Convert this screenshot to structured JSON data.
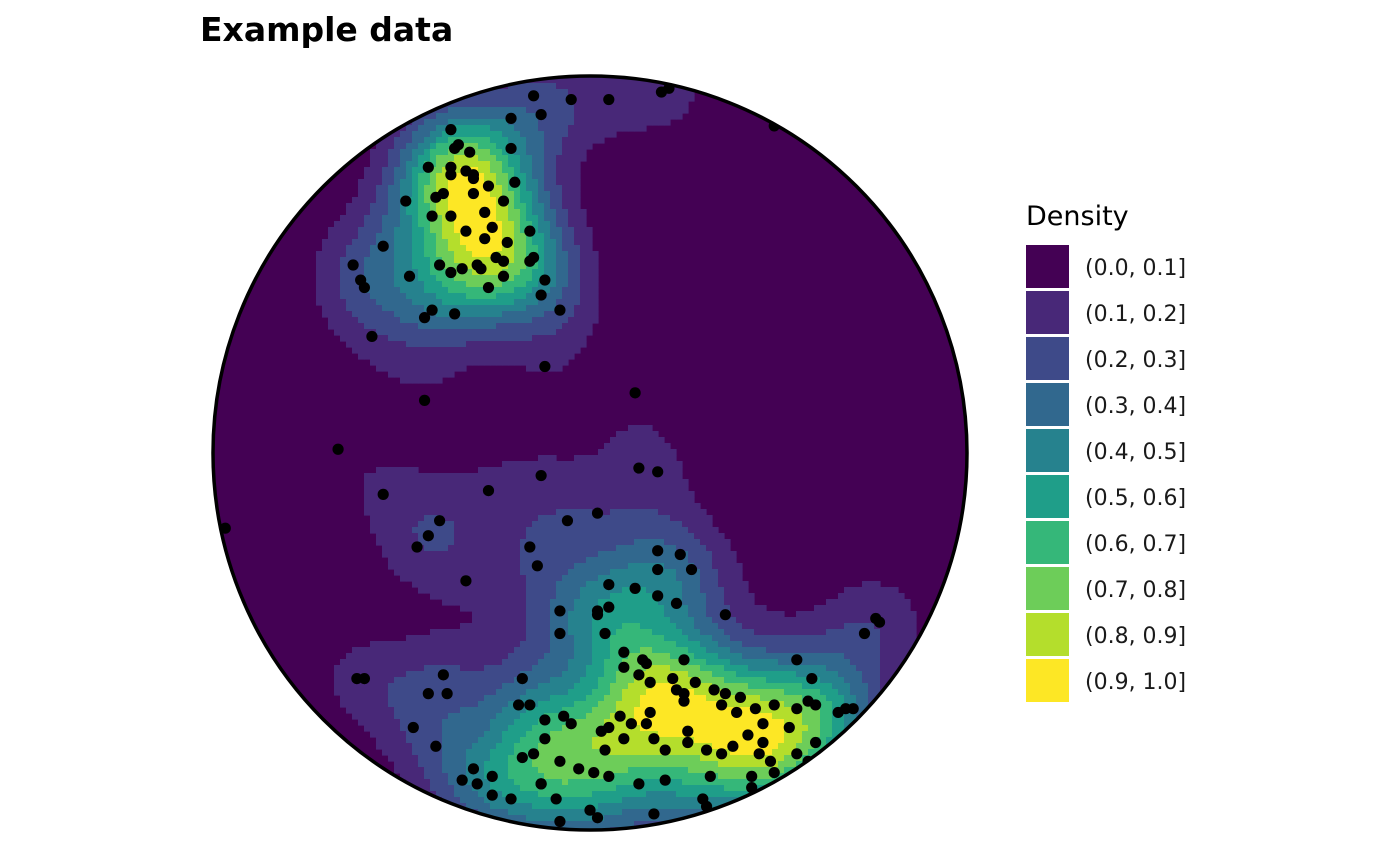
{
  "chart_data": {
    "type": "heatmap",
    "subtype": "stereonet density contour (equal-area)",
    "title": "Example data",
    "legend": {
      "title": "Density",
      "placement": "right",
      "bins": [
        {
          "label": "(0.0, 0.1]",
          "color": "#440154"
        },
        {
          "label": "(0.1, 0.2]",
          "color": "#482878"
        },
        {
          "label": "(0.2, 0.3]",
          "color": "#3E4A89"
        },
        {
          "label": "(0.3, 0.4]",
          "color": "#31688E"
        },
        {
          "label": "(0.4, 0.5]",
          "color": "#26828E"
        },
        {
          "label": "(0.5, 0.6]",
          "color": "#1F9E89"
        },
        {
          "label": "(0.6, 0.7]",
          "color": "#35B779"
        },
        {
          "label": "(0.7, 0.8]",
          "color": "#6DCD59"
        },
        {
          "label": "(0.8, 0.9]",
          "color": "#B4DE2C"
        },
        {
          "label": "(0.9, 1.0]",
          "color": "#FDE725"
        }
      ]
    },
    "grid": false,
    "point_color": "#000000",
    "points": [
      [
        -0.15,
        0.95
      ],
      [
        -0.21,
        0.89
      ],
      [
        -0.37,
        0.86
      ],
      [
        -0.35,
        0.82
      ],
      [
        -0.36,
        0.81
      ],
      [
        -0.32,
        0.8
      ],
      [
        -0.21,
        0.81
      ],
      [
        -0.31,
        0.74
      ],
      [
        -0.37,
        0.74
      ],
      [
        -0.31,
        0.73
      ],
      [
        -0.31,
        0.69
      ],
      [
        -0.2,
        0.72
      ],
      [
        -0.23,
        0.67
      ],
      [
        -0.41,
        0.68
      ],
      [
        -0.39,
        0.69
      ],
      [
        -0.28,
        0.64
      ],
      [
        -0.42,
        0.63
      ],
      [
        -0.37,
        0.63
      ],
      [
        -0.26,
        0.6
      ],
      [
        -0.33,
        0.59
      ],
      [
        -0.16,
        0.59
      ],
      [
        -0.28,
        0.57
      ],
      [
        -0.22,
        0.56
      ],
      [
        -0.15,
        0.52
      ],
      [
        -0.23,
        0.51
      ],
      [
        -0.25,
        0.52
      ],
      [
        -0.3,
        0.5
      ],
      [
        -0.29,
        0.49
      ],
      [
        -0.4,
        0.5
      ],
      [
        -0.34,
        0.49
      ],
      [
        -0.37,
        0.48
      ],
      [
        -0.23,
        0.47
      ],
      [
        -0.27,
        0.44
      ],
      [
        -0.48,
        0.47
      ],
      [
        -0.08,
        0.38
      ],
      [
        -0.13,
        0.42
      ],
      [
        -0.12,
        0.46
      ],
      [
        -0.16,
        0.51
      ],
      [
        -0.42,
        0.38
      ],
      [
        -0.44,
        0.36
      ],
      [
        -0.36,
        0.37
      ],
      [
        -0.58,
        0.31
      ],
      [
        -0.55,
        0.55
      ],
      [
        -0.61,
        0.46
      ],
      [
        -0.63,
        0.5
      ],
      [
        -0.6,
        0.44
      ],
      [
        -0.49,
        0.67
      ],
      [
        -0.43,
        0.76
      ],
      [
        -0.37,
        0.76
      ],
      [
        -0.33,
        0.75
      ],
      [
        -0.27,
        0.71
      ],
      [
        -0.13,
        0.9
      ],
      [
        -0.05,
        0.94
      ],
      [
        0.05,
        0.94
      ],
      [
        0.19,
        0.96
      ],
      [
        0.21,
        0.97
      ],
      [
        0.49,
        0.87
      ],
      [
        -0.12,
        0.23
      ],
      [
        0.12,
        0.16
      ],
      [
        -0.44,
        0.14
      ],
      [
        -0.67,
        0.01
      ],
      [
        -0.97,
        -0.2
      ],
      [
        -0.27,
        -0.1
      ],
      [
        -0.13,
        -0.06
      ],
      [
        -0.4,
        -0.18
      ],
      [
        -0.43,
        -0.22
      ],
      [
        -0.46,
        -0.25
      ],
      [
        -0.06,
        -0.18
      ],
      [
        0.02,
        -0.16
      ],
      [
        -0.55,
        -0.11
      ],
      [
        -0.33,
        -0.34
      ],
      [
        -0.16,
        -0.25
      ],
      [
        -0.14,
        -0.3
      ],
      [
        0.18,
        -0.26
      ],
      [
        0.24,
        -0.27
      ],
      [
        0.18,
        -0.31
      ],
      [
        0.27,
        -0.31
      ],
      [
        0.05,
        -0.35
      ],
      [
        0.02,
        -0.42
      ],
      [
        0.05,
        -0.41
      ],
      [
        -0.08,
        -0.42
      ],
      [
        -0.08,
        -0.48
      ],
      [
        0.04,
        -0.48
      ],
      [
        0.02,
        -0.43
      ],
      [
        0.12,
        -0.36
      ],
      [
        0.23,
        -0.4
      ],
      [
        0.09,
        -0.53
      ],
      [
        0.14,
        -0.55
      ],
      [
        0.09,
        -0.57
      ],
      [
        0.15,
        -0.56
      ],
      [
        0.13,
        -0.59
      ],
      [
        0.16,
        -0.61
      ],
      [
        0.25,
        -0.55
      ],
      [
        0.22,
        -0.6
      ],
      [
        0.23,
        -0.63
      ],
      [
        0.25,
        -0.64
      ],
      [
        0.25,
        -0.66
      ],
      [
        0.28,
        -0.61
      ],
      [
        0.33,
        -0.63
      ],
      [
        0.36,
        -0.64
      ],
      [
        0.35,
        -0.67
      ],
      [
        0.39,
        -0.69
      ],
      [
        0.4,
        -0.65
      ],
      [
        0.44,
        -0.68
      ],
      [
        0.49,
        -0.67
      ],
      [
        0.55,
        -0.68
      ],
      [
        0.53,
        -0.73
      ],
      [
        0.16,
        -0.69
      ],
      [
        0.15,
        -0.72
      ],
      [
        0.08,
        -0.7
      ],
      [
        0.11,
        -0.72
      ],
      [
        0.05,
        -0.73
      ],
      [
        0.03,
        -0.74
      ],
      [
        -0.05,
        -0.72
      ],
      [
        -0.12,
        -0.71
      ],
      [
        -0.07,
        -0.7
      ],
      [
        -0.12,
        -0.76
      ],
      [
        -0.15,
        -0.8
      ],
      [
        -0.18,
        -0.81
      ],
      [
        -0.08,
        -0.82
      ],
      [
        -0.03,
        -0.84
      ],
      [
        0.01,
        -0.85
      ],
      [
        0.04,
        -0.79
      ],
      [
        0.09,
        -0.76
      ],
      [
        0.17,
        -0.76
      ],
      [
        0.2,
        -0.79
      ],
      [
        0.26,
        -0.74
      ],
      [
        0.31,
        -0.79
      ],
      [
        0.35,
        -0.8
      ],
      [
        0.42,
        -0.75
      ],
      [
        0.46,
        -0.77
      ],
      [
        0.38,
        -0.78
      ],
      [
        0.55,
        -0.8
      ],
      [
        0.58,
        -0.82
      ],
      [
        0.67,
        -0.76
      ],
      [
        -0.26,
        -0.86
      ],
      [
        -0.3,
        -0.88
      ],
      [
        -0.34,
        -0.87
      ],
      [
        -0.26,
        -0.91
      ],
      [
        -0.13,
        -0.88
      ],
      [
        -0.09,
        -0.92
      ],
      [
        0.0,
        -0.95
      ],
      [
        0.13,
        -0.88
      ],
      [
        0.05,
        -0.86
      ],
      [
        0.2,
        -0.87
      ],
      [
        0.32,
        -0.86
      ],
      [
        0.43,
        -0.86
      ],
      [
        0.43,
        -0.89
      ],
      [
        -0.47,
        -0.73
      ],
      [
        -0.41,
        -0.78
      ],
      [
        -0.31,
        -0.84
      ],
      [
        -0.21,
        -0.92
      ],
      [
        -0.08,
        -0.98
      ],
      [
        -0.13,
        -0.88
      ],
      [
        0.02,
        -0.97
      ],
      [
        0.17,
        -0.96
      ],
      [
        0.3,
        -0.92
      ],
      [
        0.31,
        -0.94
      ],
      [
        0.49,
        -0.85
      ],
      [
        0.7,
        -0.68
      ],
      [
        0.68,
        -0.68
      ],
      [
        0.6,
        -0.77
      ],
      [
        0.55,
        -0.55
      ],
      [
        0.59,
        -0.6
      ],
      [
        0.26,
        -0.77
      ],
      [
        0.6,
        -0.67
      ],
      [
        0.46,
        -0.72
      ],
      [
        0.48,
        -0.82
      ],
      [
        0.45,
        -0.8
      ],
      [
        0.57,
        -0.87
      ],
      [
        0.58,
        -0.66
      ],
      [
        0.66,
        -0.69
      ],
      [
        0.73,
        -0.48
      ],
      [
        0.77,
        -0.45
      ],
      [
        0.76,
        -0.44
      ],
      [
        0.18,
        -0.05
      ],
      [
        0.13,
        -0.04
      ],
      [
        0.18,
        -0.38
      ],
      [
        0.36,
        -0.43
      ],
      [
        -0.6,
        -0.6
      ],
      [
        -0.62,
        -0.6
      ],
      [
        -0.39,
        -0.59
      ],
      [
        -0.38,
        -0.64
      ],
      [
        -0.43,
        -0.64
      ],
      [
        -0.19,
        -0.67
      ],
      [
        -0.18,
        -0.6
      ],
      [
        -0.16,
        -0.67
      ]
    ]
  }
}
